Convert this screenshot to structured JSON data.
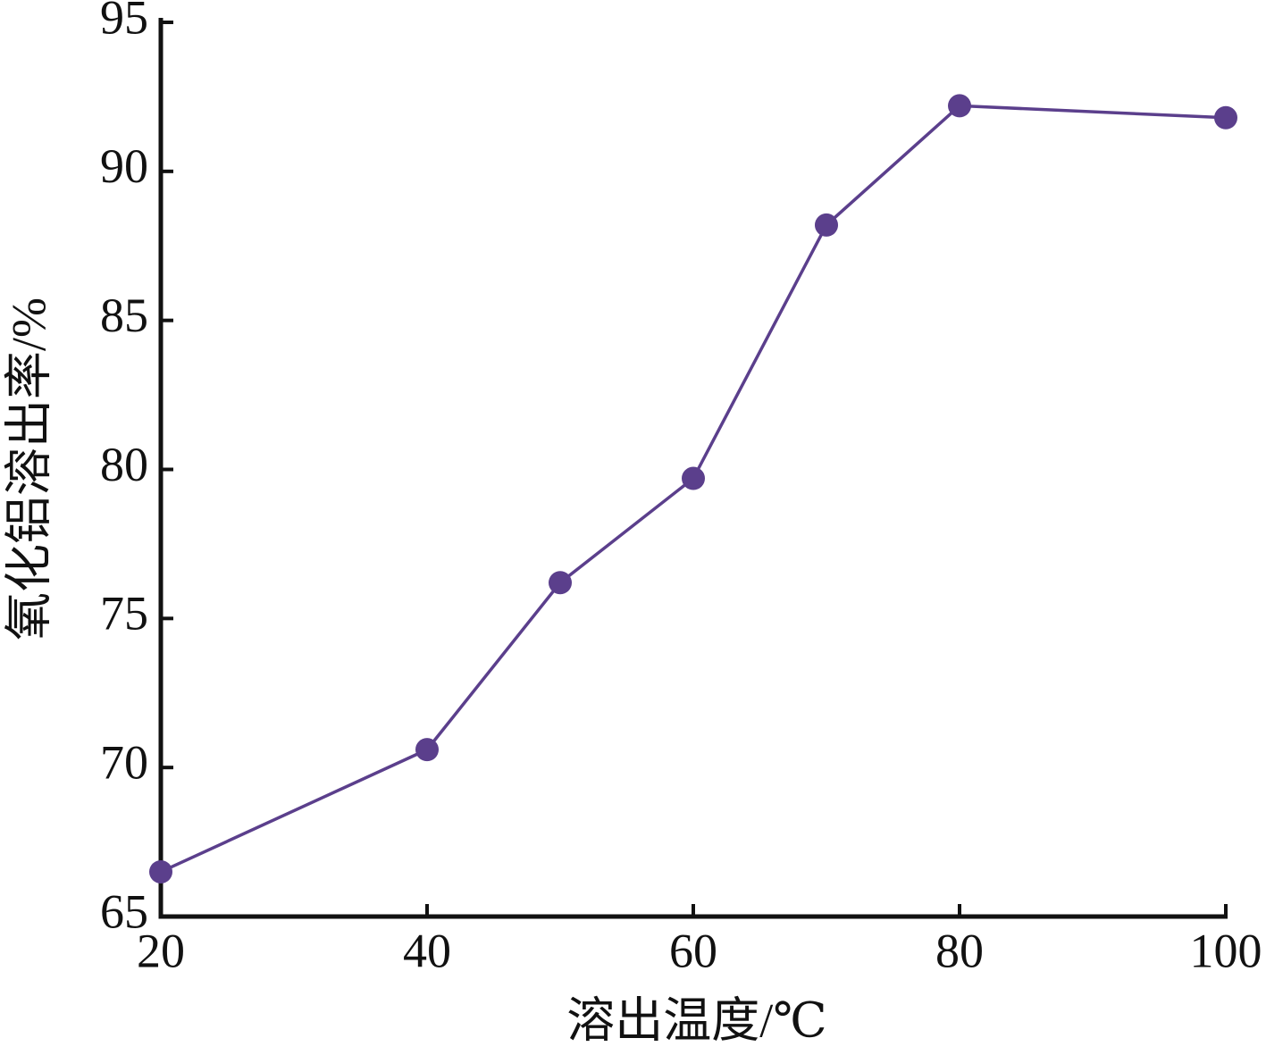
{
  "chart_data": {
    "type": "line",
    "x_label": "溶出温度/℃",
    "y_label": "氧化铝溶出率/%",
    "x": [
      20,
      40,
      50,
      60,
      70,
      80,
      100
    ],
    "series": [
      {
        "color": "#5b3f8c",
        "values": [
          66.5,
          70.6,
          76.2,
          79.7,
          88.2,
          92.2,
          91.8
        ]
      }
    ],
    "xlim": [
      20,
      100
    ],
    "xticks": [
      20,
      40,
      60,
      80,
      100
    ],
    "ylim": [
      65,
      95
    ],
    "yticks": [
      65,
      70,
      75,
      80,
      85,
      90,
      95
    ],
    "grid": false
  }
}
